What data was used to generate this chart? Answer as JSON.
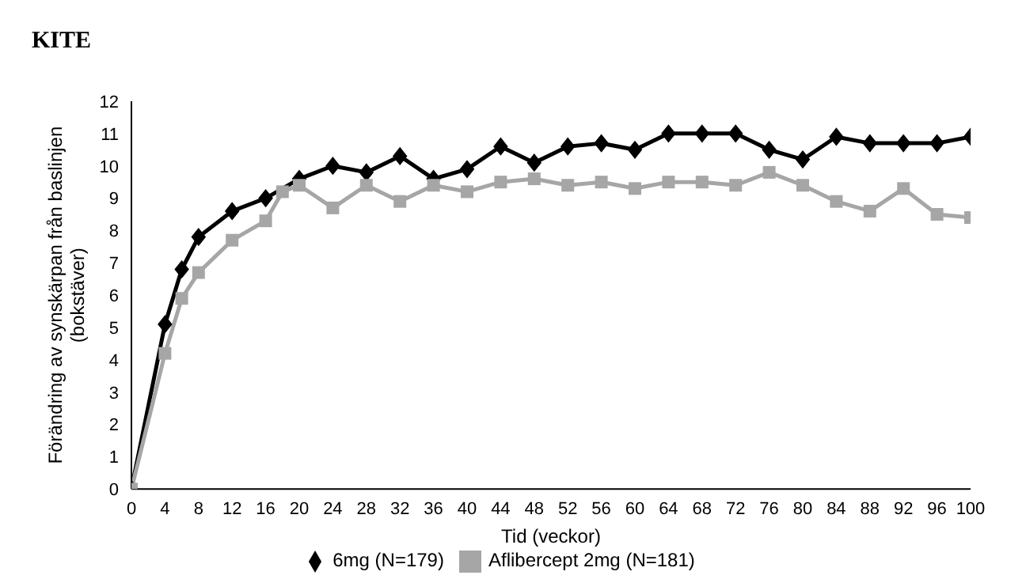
{
  "chart_data": {
    "type": "line",
    "title": "KITE",
    "xlabel": "Tid (veckor)",
    "ylabel": "Förändring av synskärpan från baslinjen\n(bokstäver)",
    "x": [
      0,
      4,
      6,
      8,
      12,
      16,
      18,
      20,
      24,
      28,
      32,
      36,
      40,
      44,
      48,
      52,
      56,
      60,
      64,
      68,
      72,
      76,
      80,
      84,
      88,
      92,
      96,
      100
    ],
    "series": [
      {
        "name": "6mg (N=179)",
        "color": "#000000",
        "marker": "diamond",
        "values": [
          0,
          5.1,
          6.8,
          7.8,
          8.6,
          9.0,
          null,
          9.6,
          10.0,
          9.8,
          10.3,
          9.6,
          9.9,
          10.6,
          10.1,
          10.6,
          10.7,
          10.5,
          11.0,
          11.0,
          11.0,
          10.5,
          10.2,
          10.9,
          10.7,
          10.7,
          10.7,
          10.9
        ]
      },
      {
        "name": "Aflibercept 2mg (N=181)",
        "color": "#a6a6a6",
        "marker": "square",
        "values": [
          0,
          4.2,
          5.9,
          6.7,
          7.7,
          8.3,
          9.2,
          9.4,
          8.7,
          9.4,
          8.9,
          9.4,
          9.2,
          9.5,
          9.6,
          9.4,
          9.5,
          9.3,
          9.5,
          9.5,
          9.4,
          9.8,
          9.4,
          8.9,
          8.6,
          9.3,
          8.5,
          8.4
        ]
      }
    ],
    "xlim": [
      0,
      100
    ],
    "xticks": [
      0,
      4,
      8,
      12,
      16,
      20,
      24,
      28,
      32,
      36,
      40,
      44,
      48,
      52,
      56,
      60,
      64,
      68,
      72,
      76,
      80,
      84,
      88,
      92,
      96,
      100
    ],
    "ylim": [
      0,
      12
    ],
    "yticks": [
      0,
      1,
      2,
      3,
      4,
      5,
      6,
      7,
      8,
      9,
      10,
      11,
      12
    ],
    "grid": false,
    "legend": "bottom"
  }
}
